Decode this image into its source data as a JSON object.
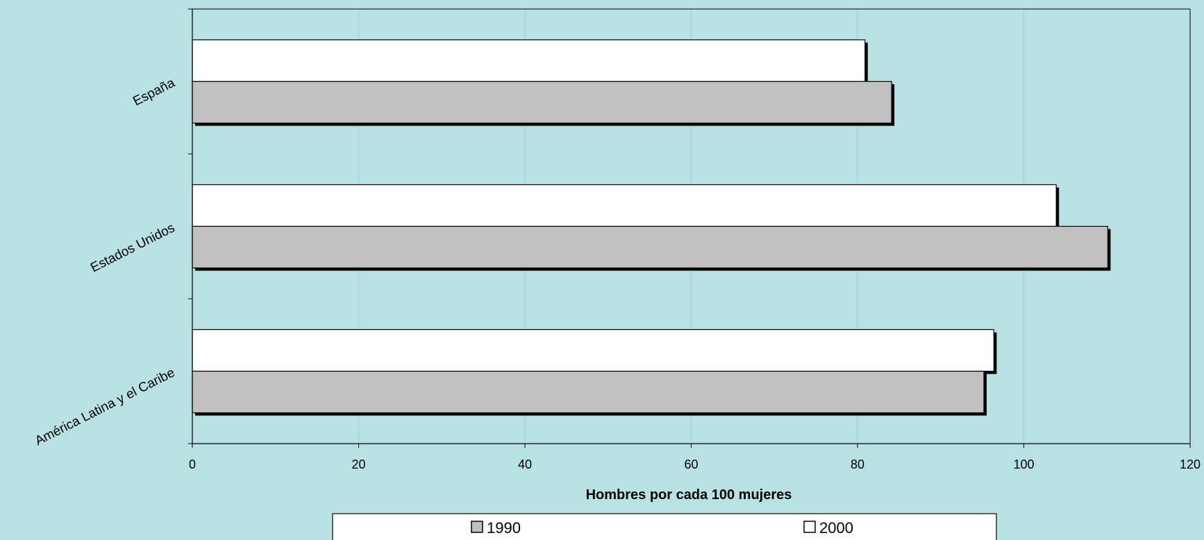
{
  "chart_data": {
    "type": "bar",
    "orientation": "horizontal",
    "categories": [
      "América Latina y el Caribe",
      "Estados Unidos",
      "España"
    ],
    "series": [
      {
        "name": "1990",
        "values": [
          95.2,
          110.1,
          84.1
        ],
        "color": "#c0c0c0"
      },
      {
        "name": "2000",
        "values": [
          96.4,
          103.9,
          80.9
        ],
        "color": "#ffffff"
      }
    ],
    "xlabel": "Hombres por cada 100 mujeres",
    "xlim": [
      0,
      120
    ],
    "xticks": [
      0,
      20,
      40,
      60,
      80,
      100,
      120
    ],
    "grid": true,
    "legend_position": "bottom",
    "colors": {
      "background": "#b9e0e3",
      "gridline": "#a6c9cc",
      "shadow": "#000000"
    }
  }
}
